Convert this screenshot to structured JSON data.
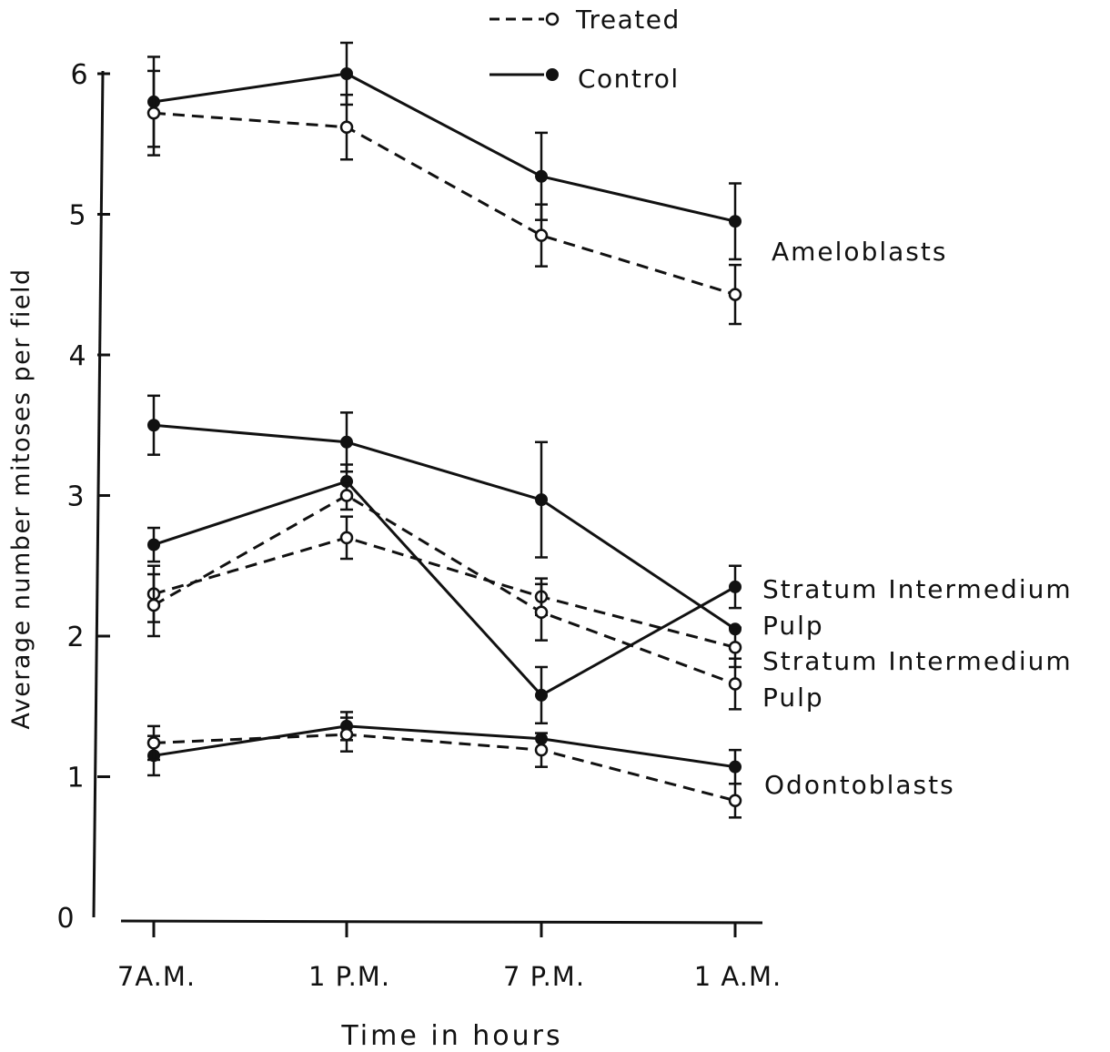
{
  "chart_data": {
    "type": "line",
    "xlabel": "Time in hours",
    "ylabel": "Average number mitoses per field",
    "categories": [
      "7A.M.",
      "1 P.M.",
      "7 P.M.",
      "1 A.M."
    ],
    "yticks": [
      "0",
      "1",
      "2",
      "3",
      "4",
      "5",
      "6"
    ],
    "ylim": [
      0,
      6
    ],
    "legend": {
      "position": "top-center",
      "entries": [
        {
          "label": "Treated",
          "style": "dashed",
          "marker": "open-circle"
        },
        {
          "label": "Control",
          "style": "solid",
          "marker": "filled-circle"
        }
      ]
    },
    "series": [
      {
        "name": "Ameloblasts",
        "group": "Control",
        "values": [
          5.8,
          6.0,
          5.27,
          4.95
        ],
        "errors": [
          0.32,
          0.22,
          0.31,
          0.27
        ]
      },
      {
        "name": "Ameloblasts",
        "group": "Treated",
        "values": [
          5.72,
          5.62,
          4.85,
          4.43
        ],
        "errors": [
          0.3,
          0.23,
          0.22,
          0.21
        ]
      },
      {
        "name": "Stratum Intermedium",
        "group": "Control",
        "values": [
          3.5,
          3.38,
          2.97,
          2.05
        ],
        "errors": [
          0.21,
          0.21,
          0.41,
          0.0
        ]
      },
      {
        "name": "Pulp",
        "group": "Control",
        "values": [
          2.65,
          3.1,
          1.58,
          2.35
        ],
        "errors": [
          0.12,
          0.12,
          0.2,
          0.15
        ]
      },
      {
        "name": "Stratum Intermedium",
        "group": "Treated",
        "values": [
          2.3,
          2.7,
          2.28,
          1.92
        ],
        "errors": [
          0.2,
          0.15,
          0.13,
          0.14
        ]
      },
      {
        "name": "Pulp",
        "group": "Treated",
        "values": [
          2.22,
          3.0,
          2.17,
          1.66
        ],
        "errors": [
          0.22,
          0.1,
          0.2,
          0.18
        ]
      },
      {
        "name": "Odontoblasts",
        "group": "Control",
        "values": [
          1.15,
          1.36,
          1.27,
          1.07
        ],
        "errors": [
          0.14,
          0.1,
          0.0,
          0.12
        ]
      },
      {
        "name": "Odontoblasts",
        "group": "Treated",
        "values": [
          1.24,
          1.3,
          1.19,
          0.83
        ],
        "errors": [
          0.12,
          0.12,
          0.12,
          0.12
        ]
      }
    ],
    "annotations": [
      "Ameloblasts",
      "Stratum Intermedium",
      "Pulp",
      "Stratum Intermedium",
      "Pulp",
      "Odontoblasts"
    ],
    "grid": false
  }
}
